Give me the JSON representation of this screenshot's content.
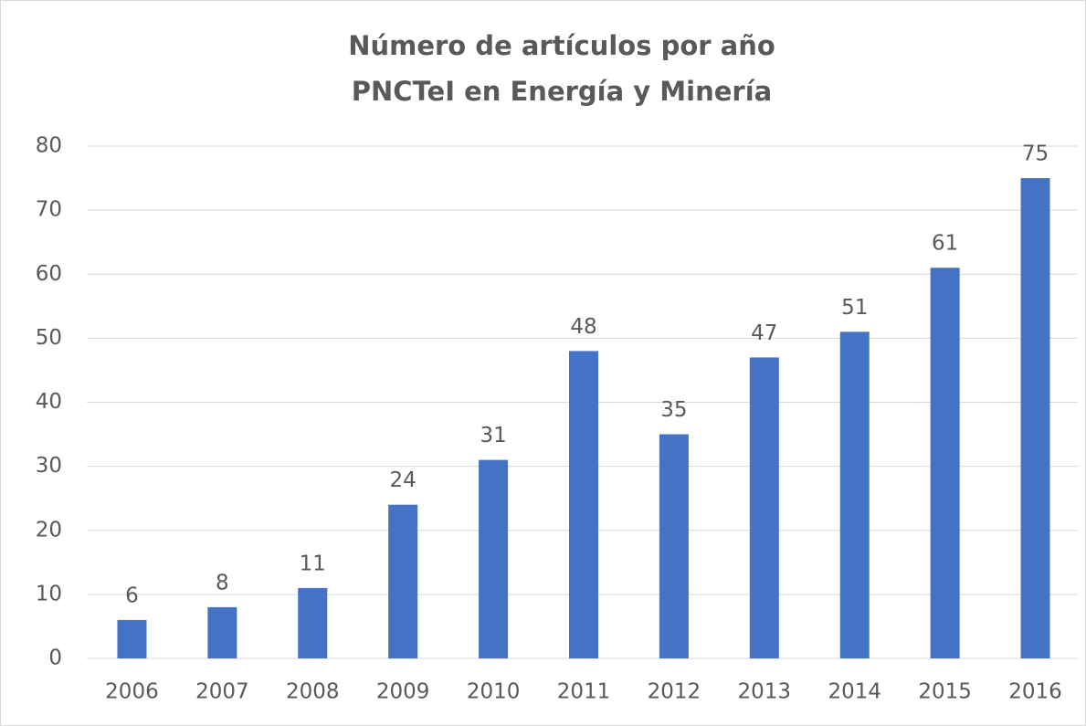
{
  "chart_data": {
    "type": "bar",
    "title": [
      "Número de artículos por año",
      "PNCTeI en Energía y Minería"
    ],
    "categories": [
      "2006",
      "2007",
      "2008",
      "2009",
      "2010",
      "2011",
      "2012",
      "2013",
      "2014",
      "2015",
      "2016"
    ],
    "values": [
      6,
      8,
      11,
      24,
      31,
      48,
      35,
      47,
      51,
      61,
      75
    ],
    "color": "#4472c4",
    "ylim": [
      0,
      80
    ],
    "yticks": [
      0,
      10,
      20,
      30,
      40,
      50,
      60,
      70,
      80
    ],
    "grid": true
  }
}
